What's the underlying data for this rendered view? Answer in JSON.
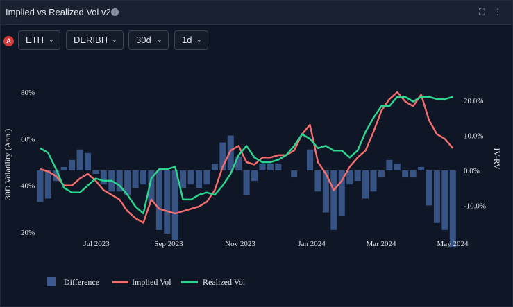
{
  "header": {
    "title": "Implied vs Realized Vol v2",
    "info_icon": "info-icon",
    "expand_icon": "expand-icon",
    "menu_icon": "kebab-menu-icon"
  },
  "controls": {
    "badge": "A",
    "asset": "ETH",
    "exchange": "DERIBIT",
    "window": "30d",
    "interval": "1d"
  },
  "colors": {
    "background": "#0f1625",
    "difference": "#3c5a8e",
    "implied": "#f26d6d",
    "realized": "#2dd48f"
  },
  "chart_data": {
    "type": "line",
    "x": [
      "2023-05-18",
      "2023-05-25",
      "2023-06-01",
      "2023-06-08",
      "2023-06-15",
      "2023-06-22",
      "2023-06-29",
      "2023-07-06",
      "2023-07-13",
      "2023-07-20",
      "2023-07-27",
      "2023-08-03",
      "2023-08-10",
      "2023-08-17",
      "2023-08-24",
      "2023-08-31",
      "2023-09-07",
      "2023-09-14",
      "2023-09-21",
      "2023-09-28",
      "2023-10-05",
      "2023-10-12",
      "2023-10-19",
      "2023-10-26",
      "2023-11-02",
      "2023-11-09",
      "2023-11-16",
      "2023-11-23",
      "2023-11-30",
      "2023-12-07",
      "2023-12-14",
      "2023-12-21",
      "2023-12-28",
      "2024-01-04",
      "2024-01-11",
      "2024-01-18",
      "2024-01-25",
      "2024-02-01",
      "2024-02-08",
      "2024-02-15",
      "2024-02-22",
      "2024-02-29",
      "2024-03-07",
      "2024-03-14",
      "2024-03-21",
      "2024-03-28",
      "2024-04-04",
      "2024-04-11",
      "2024-04-18",
      "2024-04-25",
      "2024-05-02",
      "2024-05-09",
      "2024-05-16"
    ],
    "series": [
      {
        "name": "Implied Vol",
        "axis": "left",
        "values": [
          47,
          46,
          44,
          40,
          40,
          43,
          45,
          42,
          38,
          36,
          34,
          29,
          26,
          24,
          34,
          30,
          29,
          28,
          29,
          30,
          31,
          33,
          38,
          48,
          55,
          57,
          50,
          49,
          52,
          52,
          53,
          53,
          55,
          62,
          66,
          50,
          45,
          38,
          42,
          48,
          52,
          55,
          63,
          72,
          77,
          80,
          76,
          74,
          79,
          68,
          62,
          60,
          56
        ]
      },
      {
        "name": "Realized Vol",
        "axis": "left",
        "values": [
          56,
          54,
          47,
          39,
          37,
          37,
          40,
          43,
          42,
          42,
          40,
          36,
          31,
          28,
          43,
          47,
          47,
          48,
          34,
          34,
          36,
          37,
          36,
          40,
          45,
          53,
          57,
          52,
          50,
          50,
          51,
          53,
          57,
          62,
          60,
          56,
          57,
          55,
          55,
          52,
          55,
          63,
          69,
          74,
          74,
          78,
          78,
          76,
          78,
          78,
          77,
          77,
          78
        ]
      },
      {
        "name": "Difference",
        "axis": "right",
        "values": [
          -9,
          -8,
          -3,
          1,
          3,
          6,
          5,
          -1,
          -4,
          -6,
          -6,
          -7,
          -5,
          -4,
          -9,
          -17,
          -18,
          -20,
          -5,
          -4,
          -5,
          -4,
          2,
          8,
          10,
          4,
          -7,
          -3,
          2,
          2,
          2,
          0,
          -2,
          0,
          6,
          -6,
          -12,
          -17,
          -13,
          -4,
          -3,
          -8,
          -6,
          -2,
          3,
          2,
          -2,
          -2,
          1,
          -10,
          -15,
          -17,
          -22
        ]
      }
    ],
    "title": "",
    "xlabel": "",
    "ylabel": "30D Volatility (Ann.)",
    "ylabel_right": "IV-RV",
    "ylim": [
      20,
      85
    ],
    "ylim_right": [
      -15,
      25
    ],
    "yticks": [
      "20%",
      "40%",
      "60%",
      "80%"
    ],
    "yticks_right": [
      "-10.0%",
      "0.0%",
      "10.0%",
      "20.0%"
    ],
    "xticks": [
      "Jul 2023",
      "Sep 2023",
      "Nov 2023",
      "Jan 2024",
      "Mar 2024",
      "May 2024"
    ],
    "legend": [
      "Difference",
      "Implied Vol",
      "Realized Vol"
    ],
    "legend_position": "bottom-left",
    "grid": false
  }
}
